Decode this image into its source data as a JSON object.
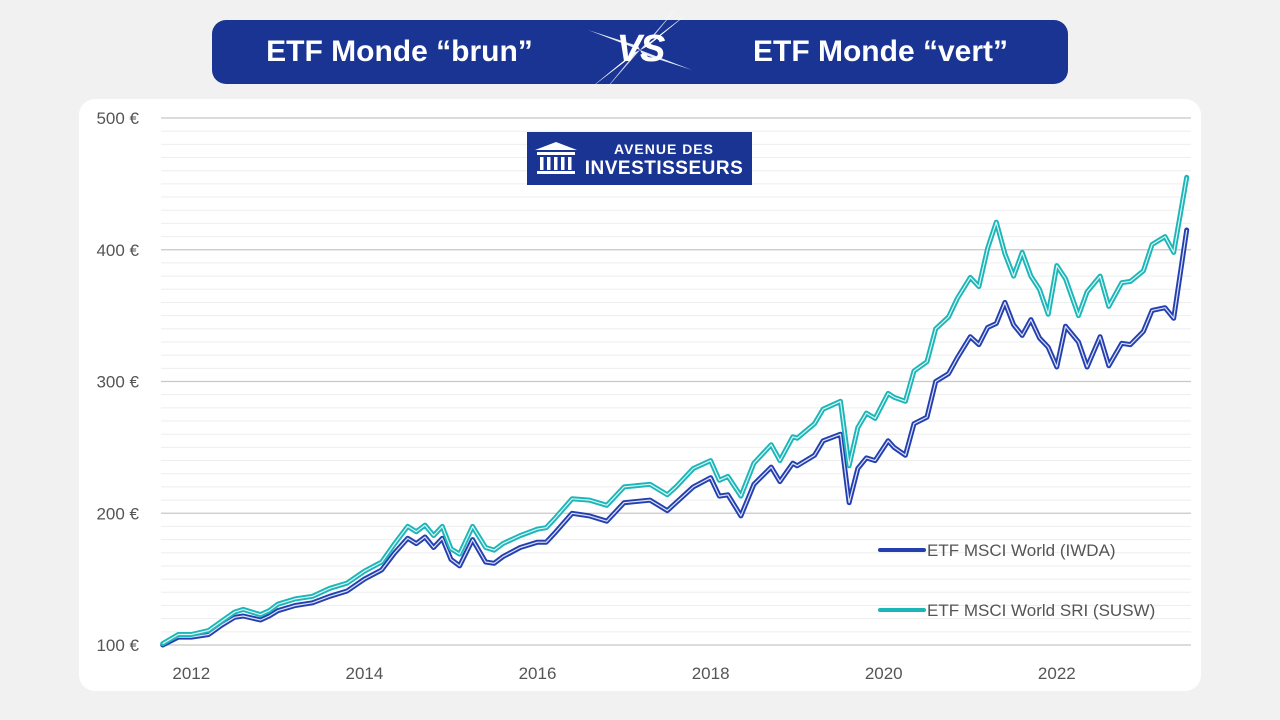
{
  "header": {
    "left_title": "ETF Monde “brun”",
    "vs_label": "VS",
    "right_title": "ETF Monde “vert”"
  },
  "logo": {
    "line1": "AVENUE DES",
    "line2": "INVESTISSEURS"
  },
  "colors": {
    "banner": "#1a3494",
    "iwda": "#2440b0",
    "susw": "#1cb6b9",
    "logo_bg": "#1a3494"
  },
  "chart_data": {
    "type": "line",
    "title": "",
    "xlabel": "",
    "ylabel": "",
    "ylim": [
      100,
      500
    ],
    "xlim": [
      2011.65,
      2023.55
    ],
    "yticks": [
      100,
      200,
      300,
      400,
      500
    ],
    "ytick_labels": [
      "100 €",
      "200 €",
      "300 €",
      "400 €",
      "500 €"
    ],
    "xticks": [
      2012,
      2014,
      2016,
      2018,
      2020,
      2022
    ],
    "xtick_labels": [
      "2012",
      "2014",
      "2016",
      "2018",
      "2020",
      "2022"
    ],
    "grid": true,
    "legend_position": "bottom-right",
    "series": [
      {
        "name": "ETF MSCI World (IWDA)",
        "x": [
          2011.67,
          2011.85,
          2012.0,
          2012.2,
          2012.35,
          2012.5,
          2012.6,
          2012.8,
          2012.9,
          2013.0,
          2013.2,
          2013.4,
          2013.6,
          2013.8,
          2014.0,
          2014.2,
          2014.35,
          2014.5,
          2014.6,
          2014.7,
          2014.8,
          2014.9,
          2015.0,
          2015.1,
          2015.25,
          2015.4,
          2015.5,
          2015.6,
          2015.8,
          2016.0,
          2016.1,
          2016.2,
          2016.4,
          2016.6,
          2016.8,
          2017.0,
          2017.3,
          2017.5,
          2017.6,
          2017.8,
          2018.0,
          2018.1,
          2018.2,
          2018.35,
          2018.5,
          2018.7,
          2018.8,
          2018.95,
          2019.0,
          2019.2,
          2019.3,
          2019.5,
          2019.6,
          2019.7,
          2019.8,
          2019.9,
          2020.05,
          2020.12,
          2020.25,
          2020.35,
          2020.5,
          2020.6,
          2020.75,
          2020.85,
          2021.0,
          2021.1,
          2021.2,
          2021.3,
          2021.4,
          2021.5,
          2021.6,
          2021.7,
          2021.8,
          2021.9,
          2022.0,
          2022.1,
          2022.25,
          2022.35,
          2022.5,
          2022.6,
          2022.75,
          2022.85,
          2023.0,
          2023.1,
          2023.25,
          2023.35,
          2023.5
        ],
        "values": [
          100,
          106,
          106,
          108,
          115,
          121,
          122,
          119,
          122,
          126,
          130,
          132,
          137,
          141,
          150,
          157,
          170,
          181,
          177,
          182,
          174,
          181,
          165,
          160,
          180,
          163,
          162,
          167,
          174,
          178,
          178,
          185,
          200,
          198,
          194,
          208,
          210,
          202,
          208,
          220,
          227,
          213,
          214,
          198,
          222,
          235,
          224,
          238,
          236,
          244,
          255,
          260,
          208,
          234,
          242,
          240,
          255,
          250,
          244,
          268,
          273,
          300,
          306,
          318,
          334,
          328,
          341,
          344,
          360,
          343,
          335,
          347,
          333,
          326,
          311,
          342,
          330,
          311,
          334,
          312,
          329,
          328,
          338,
          354,
          356,
          348,
          415
        ]
      },
      {
        "name": "ETF MSCI World SRI (SUSW)",
        "x": [
          2011.67,
          2011.85,
          2012.0,
          2012.2,
          2012.35,
          2012.5,
          2012.6,
          2012.8,
          2012.9,
          2013.0,
          2013.2,
          2013.4,
          2013.6,
          2013.8,
          2014.0,
          2014.2,
          2014.35,
          2014.5,
          2014.6,
          2014.7,
          2014.8,
          2014.9,
          2015.0,
          2015.1,
          2015.25,
          2015.4,
          2015.5,
          2015.6,
          2015.8,
          2016.0,
          2016.1,
          2016.2,
          2016.4,
          2016.6,
          2016.8,
          2017.0,
          2017.3,
          2017.5,
          2017.6,
          2017.8,
          2018.0,
          2018.1,
          2018.2,
          2018.35,
          2018.5,
          2018.7,
          2018.8,
          2018.95,
          2019.0,
          2019.2,
          2019.3,
          2019.5,
          2019.6,
          2019.7,
          2019.8,
          2019.9,
          2020.05,
          2020.12,
          2020.25,
          2020.35,
          2020.5,
          2020.6,
          2020.75,
          2020.85,
          2021.0,
          2021.1,
          2021.2,
          2021.3,
          2021.4,
          2021.5,
          2021.6,
          2021.7,
          2021.8,
          2021.9,
          2022.0,
          2022.1,
          2022.25,
          2022.35,
          2022.5,
          2022.6,
          2022.75,
          2022.85,
          2023.0,
          2023.1,
          2023.25,
          2023.35,
          2023.5
        ],
        "values": [
          101,
          108,
          108,
          111,
          118,
          125,
          127,
          123,
          126,
          131,
          135,
          137,
          143,
          147,
          156,
          163,
          177,
          190,
          186,
          191,
          183,
          190,
          173,
          169,
          190,
          174,
          172,
          177,
          183,
          188,
          189,
          196,
          211,
          210,
          206,
          220,
          222,
          214,
          220,
          234,
          240,
          225,
          228,
          213,
          238,
          252,
          240,
          258,
          257,
          268,
          279,
          285,
          236,
          265,
          276,
          272,
          291,
          288,
          285,
          308,
          315,
          340,
          349,
          363,
          379,
          372,
          401,
          421,
          397,
          380,
          398,
          380,
          370,
          351,
          388,
          378,
          350,
          368,
          380,
          357,
          375,
          376,
          384,
          404,
          410,
          398,
          455
        ]
      }
    ]
  }
}
